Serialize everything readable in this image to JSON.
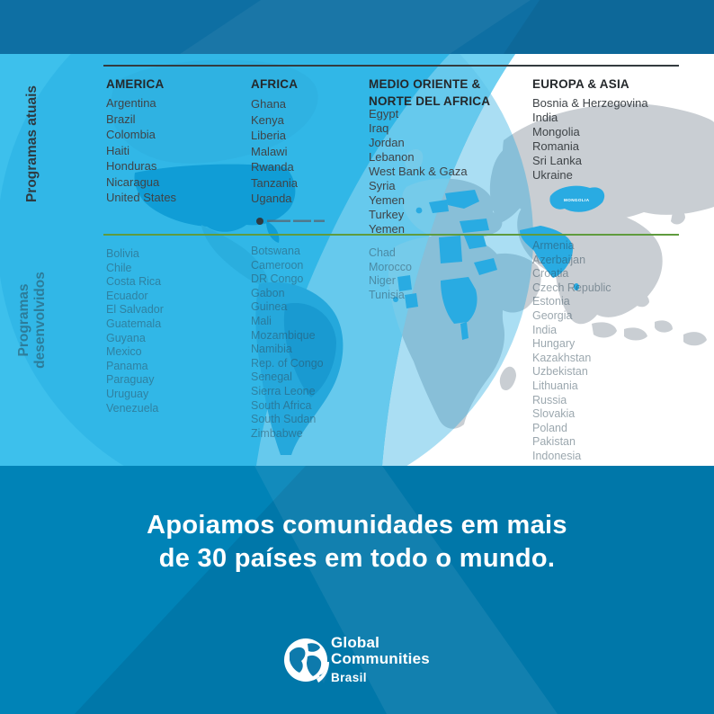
{
  "colors": {
    "band_top": "#0e6fa3",
    "band_bottom": "#0083b7",
    "background_blue": "#3ec0ec",
    "map_gray": "#c9ced3",
    "highlight_blue": "#29abe2",
    "green_divider": "#5f9b3e",
    "text_dark": "#3f4448",
    "text_gray": "#9aa4aa",
    "white": "#ffffff"
  },
  "sidebar": {
    "current_label": "Programas atuais",
    "developed_label": "Programas desenvolvidos"
  },
  "regions": [
    {
      "name": "AMERICA",
      "current": [
        "Argentina",
        "Brazil",
        "Colombia",
        "Haiti",
        "Honduras",
        "Nicaragua",
        "United States"
      ],
      "developed": [
        "Bolivia",
        "Chile",
        "Costa Rica",
        "Ecuador",
        "El Salvador",
        "Guatemala",
        "Guyana",
        "Mexico",
        "Panama",
        "Paraguay",
        "Uruguay",
        "Venezuela"
      ]
    },
    {
      "name": "AFRICA",
      "current": [
        "Ghana",
        "Kenya",
        "Liberia",
        "Malawi",
        "Rwanda",
        "Tanzania",
        "Uganda"
      ],
      "developed": [
        "Botswana",
        "Cameroon",
        "DR Congo",
        "Gabon",
        "Guinea",
        "Mali",
        "Mozambique",
        "Namibia",
        "Rep. of Congo",
        "Senegal",
        "Sierra Leone",
        "South Africa",
        "South Sudan",
        "Zimbabwe"
      ]
    },
    {
      "name": "MEDIO ORIENTE & NORTE DEL AFRICA",
      "current": [
        "Egypt",
        "Iraq",
        "Jordan",
        "Lebanon",
        "West Bank & Gaza",
        "Syria",
        "Yemen",
        "Turkey",
        "Yemen"
      ],
      "developed": [
        "Chad",
        "Morocco",
        "Niger",
        "Tunisia"
      ]
    },
    {
      "name": "EUROPA & ASIA",
      "current": [
        "Bosnia & Herzegovina",
        "India",
        "Mongolia",
        "Romania",
        "Sri Lanka",
        "Ukraine"
      ],
      "developed": [
        "Armenia",
        "Azerbaijan",
        "Croatia",
        "Czech Republic",
        "Estonia",
        "Georgia",
        "India",
        "Hungary",
        "Kazakhstan",
        "Uzbekistan",
        "Lithuania",
        "Russia",
        "Slovakia",
        "Poland",
        "Pakistan",
        "Indonesia"
      ]
    }
  ],
  "map": {
    "mongolia_label": "MONGOLIA"
  },
  "footer": {
    "tagline_line1": "Apoiamos comunidades em mais",
    "tagline_line2": "de 30 países em todo o mundo.",
    "logo_line1": "Global",
    "logo_line2": "Communities",
    "logo_line3": "Brasil"
  }
}
